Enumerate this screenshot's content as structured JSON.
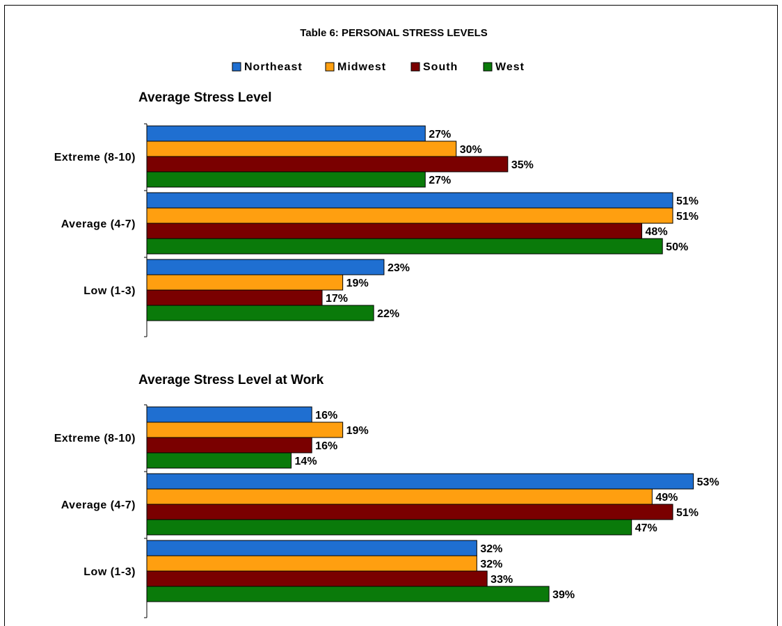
{
  "chart_data": {
    "type": "bar",
    "orientation": "horizontal",
    "title": "Table 6: PERSONAL STRESS LEVELS",
    "legend": {
      "placement": "top",
      "entries": [
        {
          "name": "Northeast",
          "color": "#1f6fd1"
        },
        {
          "name": "Midwest",
          "color": "#ff9f10"
        },
        {
          "name": "South",
          "color": "#7a0000"
        },
        {
          "name": "West",
          "color": "#0a7a0a"
        }
      ]
    },
    "grid": false,
    "xlim": [
      0,
      60
    ],
    "value_suffix": "%",
    "groups": [
      {
        "title": "Average Stress Level",
        "categories": [
          "Extreme (8-10)",
          "Average (4-7)",
          "Low (1-3)"
        ],
        "series": [
          {
            "name": "Northeast",
            "values": [
              27,
              51,
              23
            ]
          },
          {
            "name": "Midwest",
            "values": [
              30,
              51,
              19
            ]
          },
          {
            "name": "South",
            "values": [
              35,
              48,
              17
            ]
          },
          {
            "name": "West",
            "values": [
              27,
              50,
              22
            ]
          }
        ]
      },
      {
        "title": "Average Stress Level at Work",
        "categories": [
          "Extreme (8-10)",
          "Average (4-7)",
          "Low (1-3)"
        ],
        "series": [
          {
            "name": "Northeast",
            "values": [
              16,
              53,
              32
            ]
          },
          {
            "name": "Midwest",
            "values": [
              19,
              49,
              32
            ]
          },
          {
            "name": "South",
            "values": [
              16,
              51,
              33
            ]
          },
          {
            "name": "West",
            "values": [
              14,
              47,
              39
            ]
          }
        ]
      }
    ]
  }
}
